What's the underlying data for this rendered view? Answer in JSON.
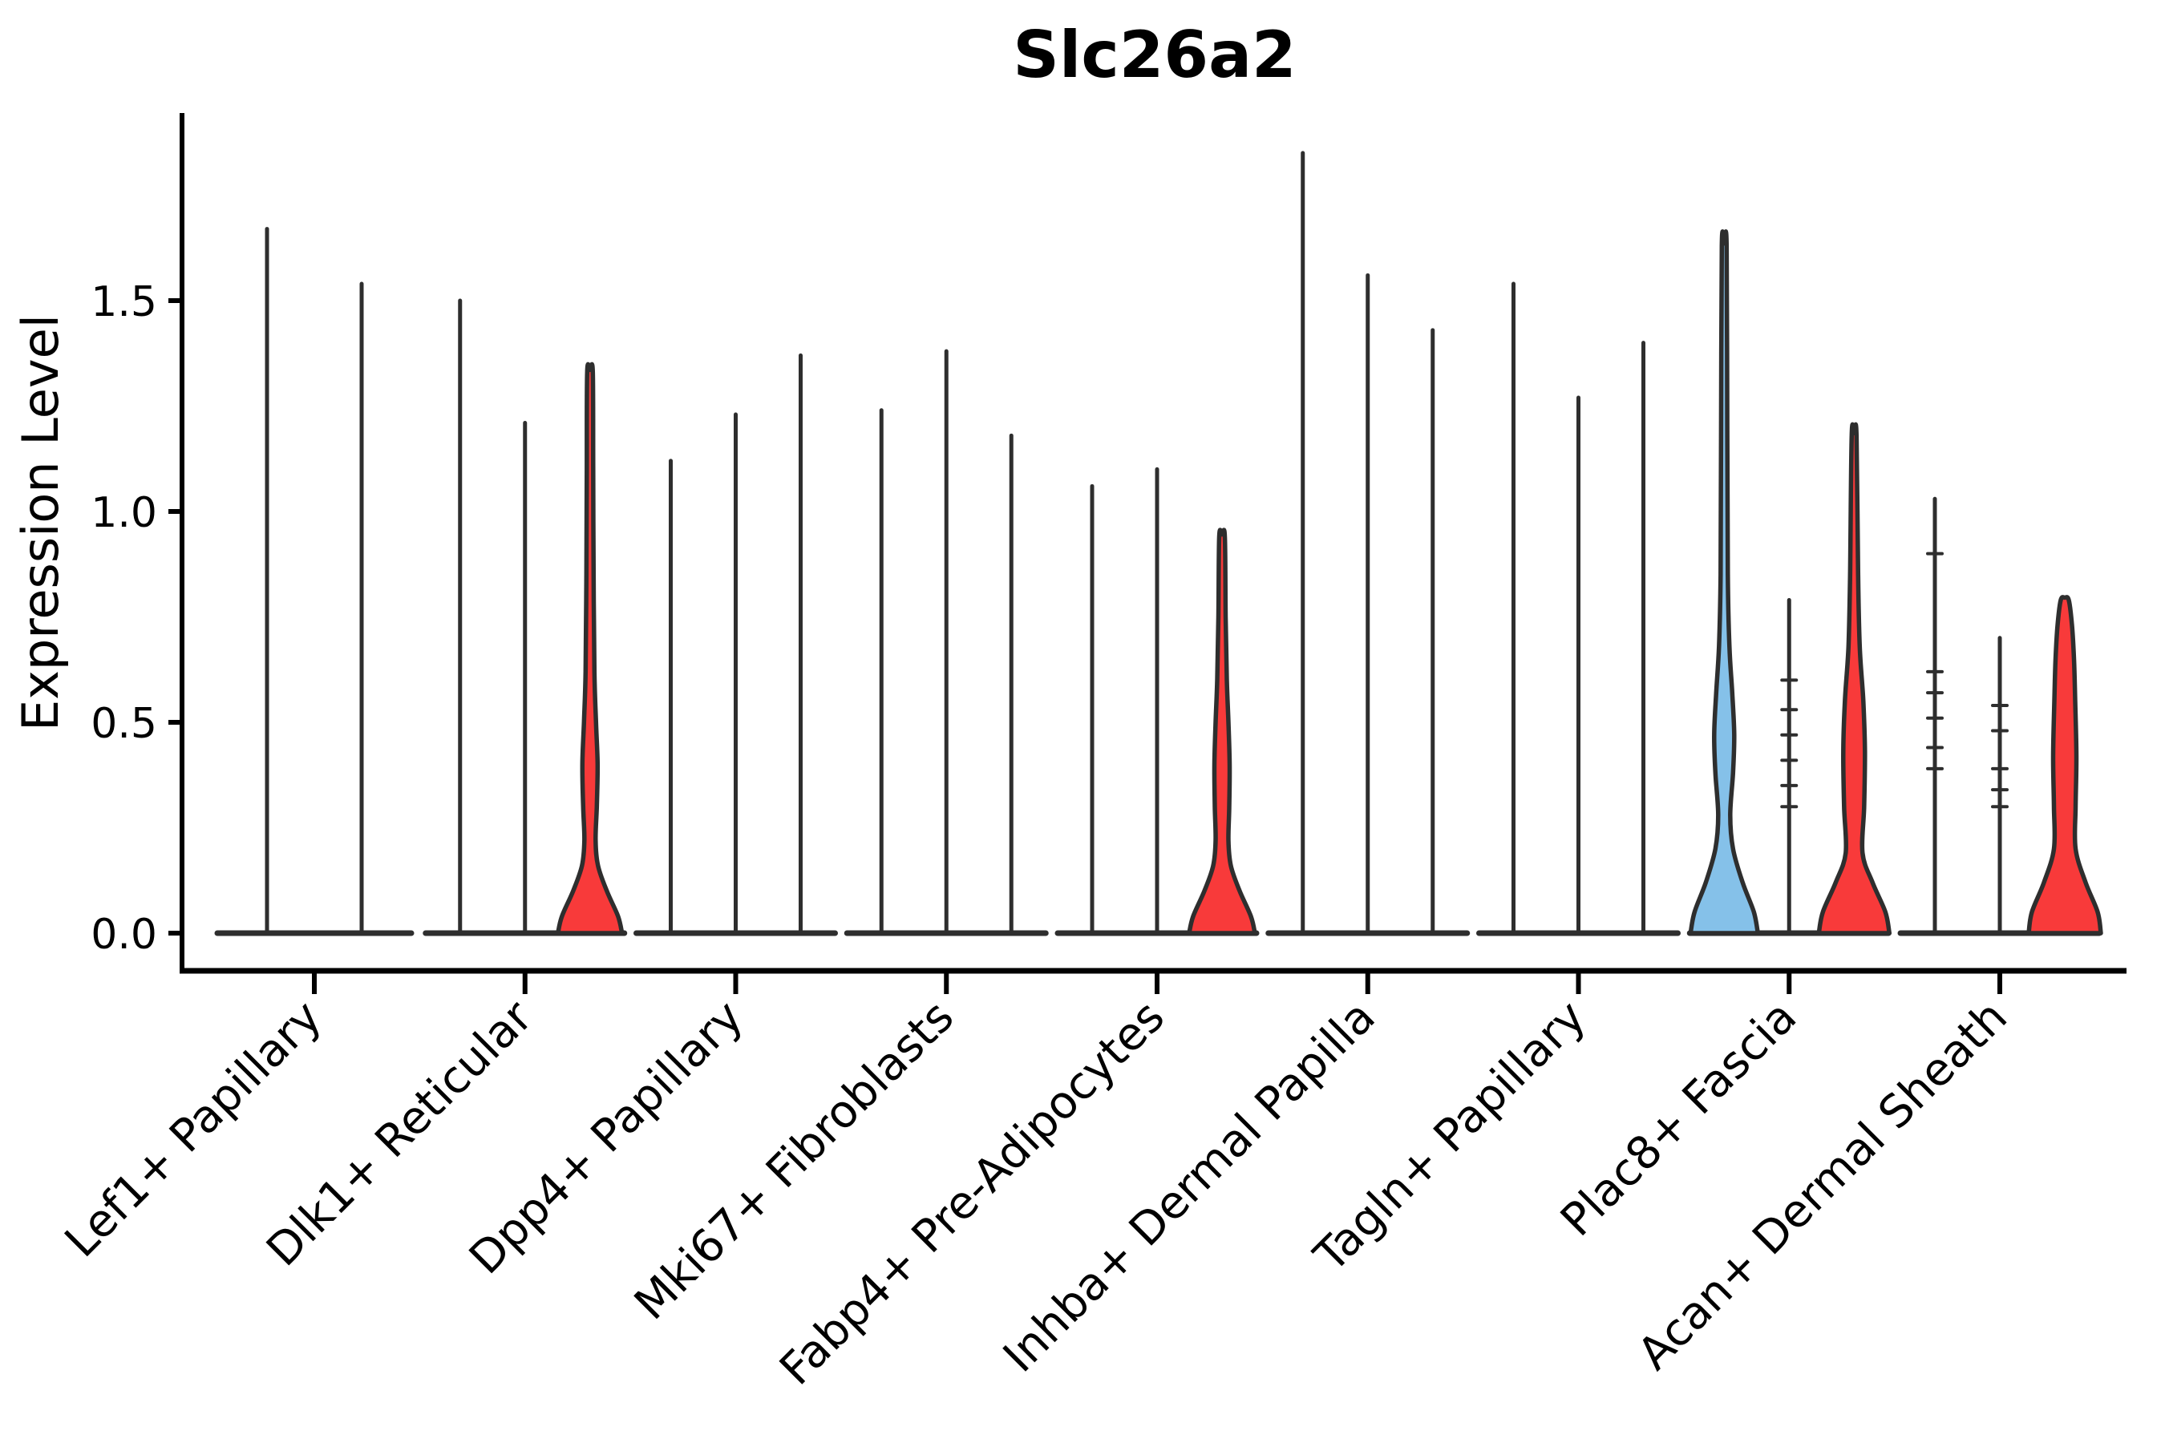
{
  "title": "Slc26a2",
  "axes": {
    "ylabel": "Expression Level",
    "yticks": [
      {
        "value": 0.0,
        "label": "0.0"
      },
      {
        "value": 0.5,
        "label": "0.5"
      },
      {
        "value": 1.0,
        "label": "1.0"
      },
      {
        "value": 1.5,
        "label": "1.5"
      }
    ]
  },
  "colors": {
    "red_fill": "#f83a3a",
    "blue_fill": "#85c1e9",
    "violin_outline": "#2e2e2e",
    "axis": "#000000"
  },
  "chart_data": {
    "type": "violin",
    "title": "Slc26a2",
    "xlabel": "",
    "ylabel": "Expression Level",
    "ylim": [
      0,
      1.95
    ],
    "yticks": [
      0.0,
      0.5,
      1.0,
      1.5
    ],
    "grid": false,
    "legend": "none",
    "categories": [
      "Lef1+ Papillary",
      "Dlk1+ Reticular",
      "Dpp4+ Papillary",
      "Mki67+ Fibroblasts",
      "Fabp4+ Pre-Adipocytes",
      "Inhba+ Dermal Papilla",
      "Tagln+ Papillary",
      "Plac8+ Fascia",
      "Acan+ Dermal Sheath"
    ],
    "groups": [
      {
        "label": "Lef1+ Papillary",
        "violins": [
          {
            "kind": "spike",
            "max": 1.67,
            "fill": "none"
          },
          {
            "kind": "spike",
            "max": 1.54,
            "fill": "none"
          }
        ]
      },
      {
        "label": "Dlk1+ Reticular",
        "violins": [
          {
            "kind": "spike",
            "max": 1.5,
            "fill": "none"
          },
          {
            "kind": "spike",
            "max": 1.21,
            "fill": "none"
          },
          {
            "kind": "violin",
            "max": 1.33,
            "fill": "red",
            "profile": [
              [
                0,
                40
              ],
              [
                0.04,
                35
              ],
              [
                0.1,
                21
              ],
              [
                0.16,
                10
              ],
              [
                0.22,
                7
              ],
              [
                0.3,
                8.5
              ],
              [
                0.4,
                9.5
              ],
              [
                0.5,
                7.5
              ],
              [
                0.62,
                5.5
              ],
              [
                0.85,
                4.5
              ],
              [
                1.1,
                4
              ],
              [
                1.33,
                3.5
              ]
            ]
          }
        ]
      },
      {
        "label": "Dpp4+ Papillary",
        "violins": [
          {
            "kind": "spike",
            "max": 1.12,
            "fill": "none"
          },
          {
            "kind": "spike",
            "max": 1.23,
            "fill": "none"
          },
          {
            "kind": "spike",
            "max": 1.37,
            "fill": "none"
          }
        ]
      },
      {
        "label": "Mki67+ Fibroblasts",
        "violins": [
          {
            "kind": "spike",
            "max": 1.24,
            "fill": "none"
          },
          {
            "kind": "spike",
            "max": 1.38,
            "fill": "none"
          },
          {
            "kind": "spike",
            "max": 1.18,
            "fill": "none"
          }
        ]
      },
      {
        "label": "Fabp4+ Pre-Adipocytes",
        "violins": [
          {
            "kind": "spike",
            "max": 1.06,
            "fill": "none"
          },
          {
            "kind": "spike",
            "max": 1.1,
            "fill": "none"
          },
          {
            "kind": "violin",
            "max": 0.94,
            "fill": "red",
            "profile": [
              [
                0,
                41
              ],
              [
                0.04,
                36
              ],
              [
                0.1,
                22
              ],
              [
                0.16,
                11
              ],
              [
                0.22,
                8
              ],
              [
                0.3,
                9
              ],
              [
                0.4,
                9.5
              ],
              [
                0.5,
                8
              ],
              [
                0.6,
                6
              ],
              [
                0.75,
                4.5
              ],
              [
                0.94,
                3.5
              ]
            ]
          }
        ]
      },
      {
        "label": "Inhba+ Dermal Papilla",
        "violins": [
          {
            "kind": "spike",
            "max": 1.85,
            "fill": "none"
          },
          {
            "kind": "spike",
            "max": 1.56,
            "fill": "none"
          },
          {
            "kind": "spike",
            "max": 1.43,
            "fill": "none"
          }
        ]
      },
      {
        "label": "Tagln+ Papillary",
        "violins": [
          {
            "kind": "spike",
            "max": 1.54,
            "fill": "none"
          },
          {
            "kind": "spike",
            "max": 1.27,
            "fill": "none"
          },
          {
            "kind": "spike",
            "max": 1.4,
            "fill": "none"
          }
        ]
      },
      {
        "label": "Plac8+ Fascia",
        "violins": [
          {
            "kind": "violin",
            "max": 1.63,
            "fill": "blue",
            "profile": [
              [
                0,
                42
              ],
              [
                0.05,
                37
              ],
              [
                0.12,
                23
              ],
              [
                0.2,
                11
              ],
              [
                0.28,
                7.5
              ],
              [
                0.38,
                11
              ],
              [
                0.47,
                12.5
              ],
              [
                0.57,
                10
              ],
              [
                0.68,
                6.5
              ],
              [
                0.85,
                4.5
              ],
              [
                1.2,
                3.8
              ],
              [
                1.63,
                3
              ]
            ]
          },
          {
            "kind": "spike",
            "max": 0.79,
            "fill": "none",
            "marks": [
              0.3,
              0.35,
              0.41,
              0.47,
              0.53,
              0.6
            ]
          },
          {
            "kind": "violin",
            "max": 1.18,
            "fill": "red",
            "profile": [
              [
                0,
                44
              ],
              [
                0.05,
                39
              ],
              [
                0.12,
                23
              ],
              [
                0.19,
                10.5
              ],
              [
                0.3,
                12.5
              ],
              [
                0.43,
                13.5
              ],
              [
                0.55,
                11.5
              ],
              [
                0.68,
                7
              ],
              [
                0.85,
                5
              ],
              [
                1.18,
                3
              ]
            ]
          }
        ]
      },
      {
        "label": "Acan+ Dermal Sheath",
        "violins": [
          {
            "kind": "spike",
            "max": 1.03,
            "fill": "none",
            "marks": [
              0.39,
              0.44,
              0.51,
              0.57,
              0.62,
              0.9
            ]
          },
          {
            "kind": "spike",
            "max": 0.7,
            "fill": "none",
            "marks": [
              0.3,
              0.34,
              0.39,
              0.48,
              0.54
            ]
          },
          {
            "kind": "violin",
            "max": 0.79,
            "fill": "red",
            "profile": [
              [
                0,
                45
              ],
              [
                0.05,
                41
              ],
              [
                0.12,
                26
              ],
              [
                0.2,
                13.5
              ],
              [
                0.3,
                13.5
              ],
              [
                0.42,
                14.5
              ],
              [
                0.55,
                13
              ],
              [
                0.65,
                11.5
              ],
              [
                0.73,
                9
              ],
              [
                0.79,
                5
              ]
            ]
          }
        ]
      }
    ]
  }
}
